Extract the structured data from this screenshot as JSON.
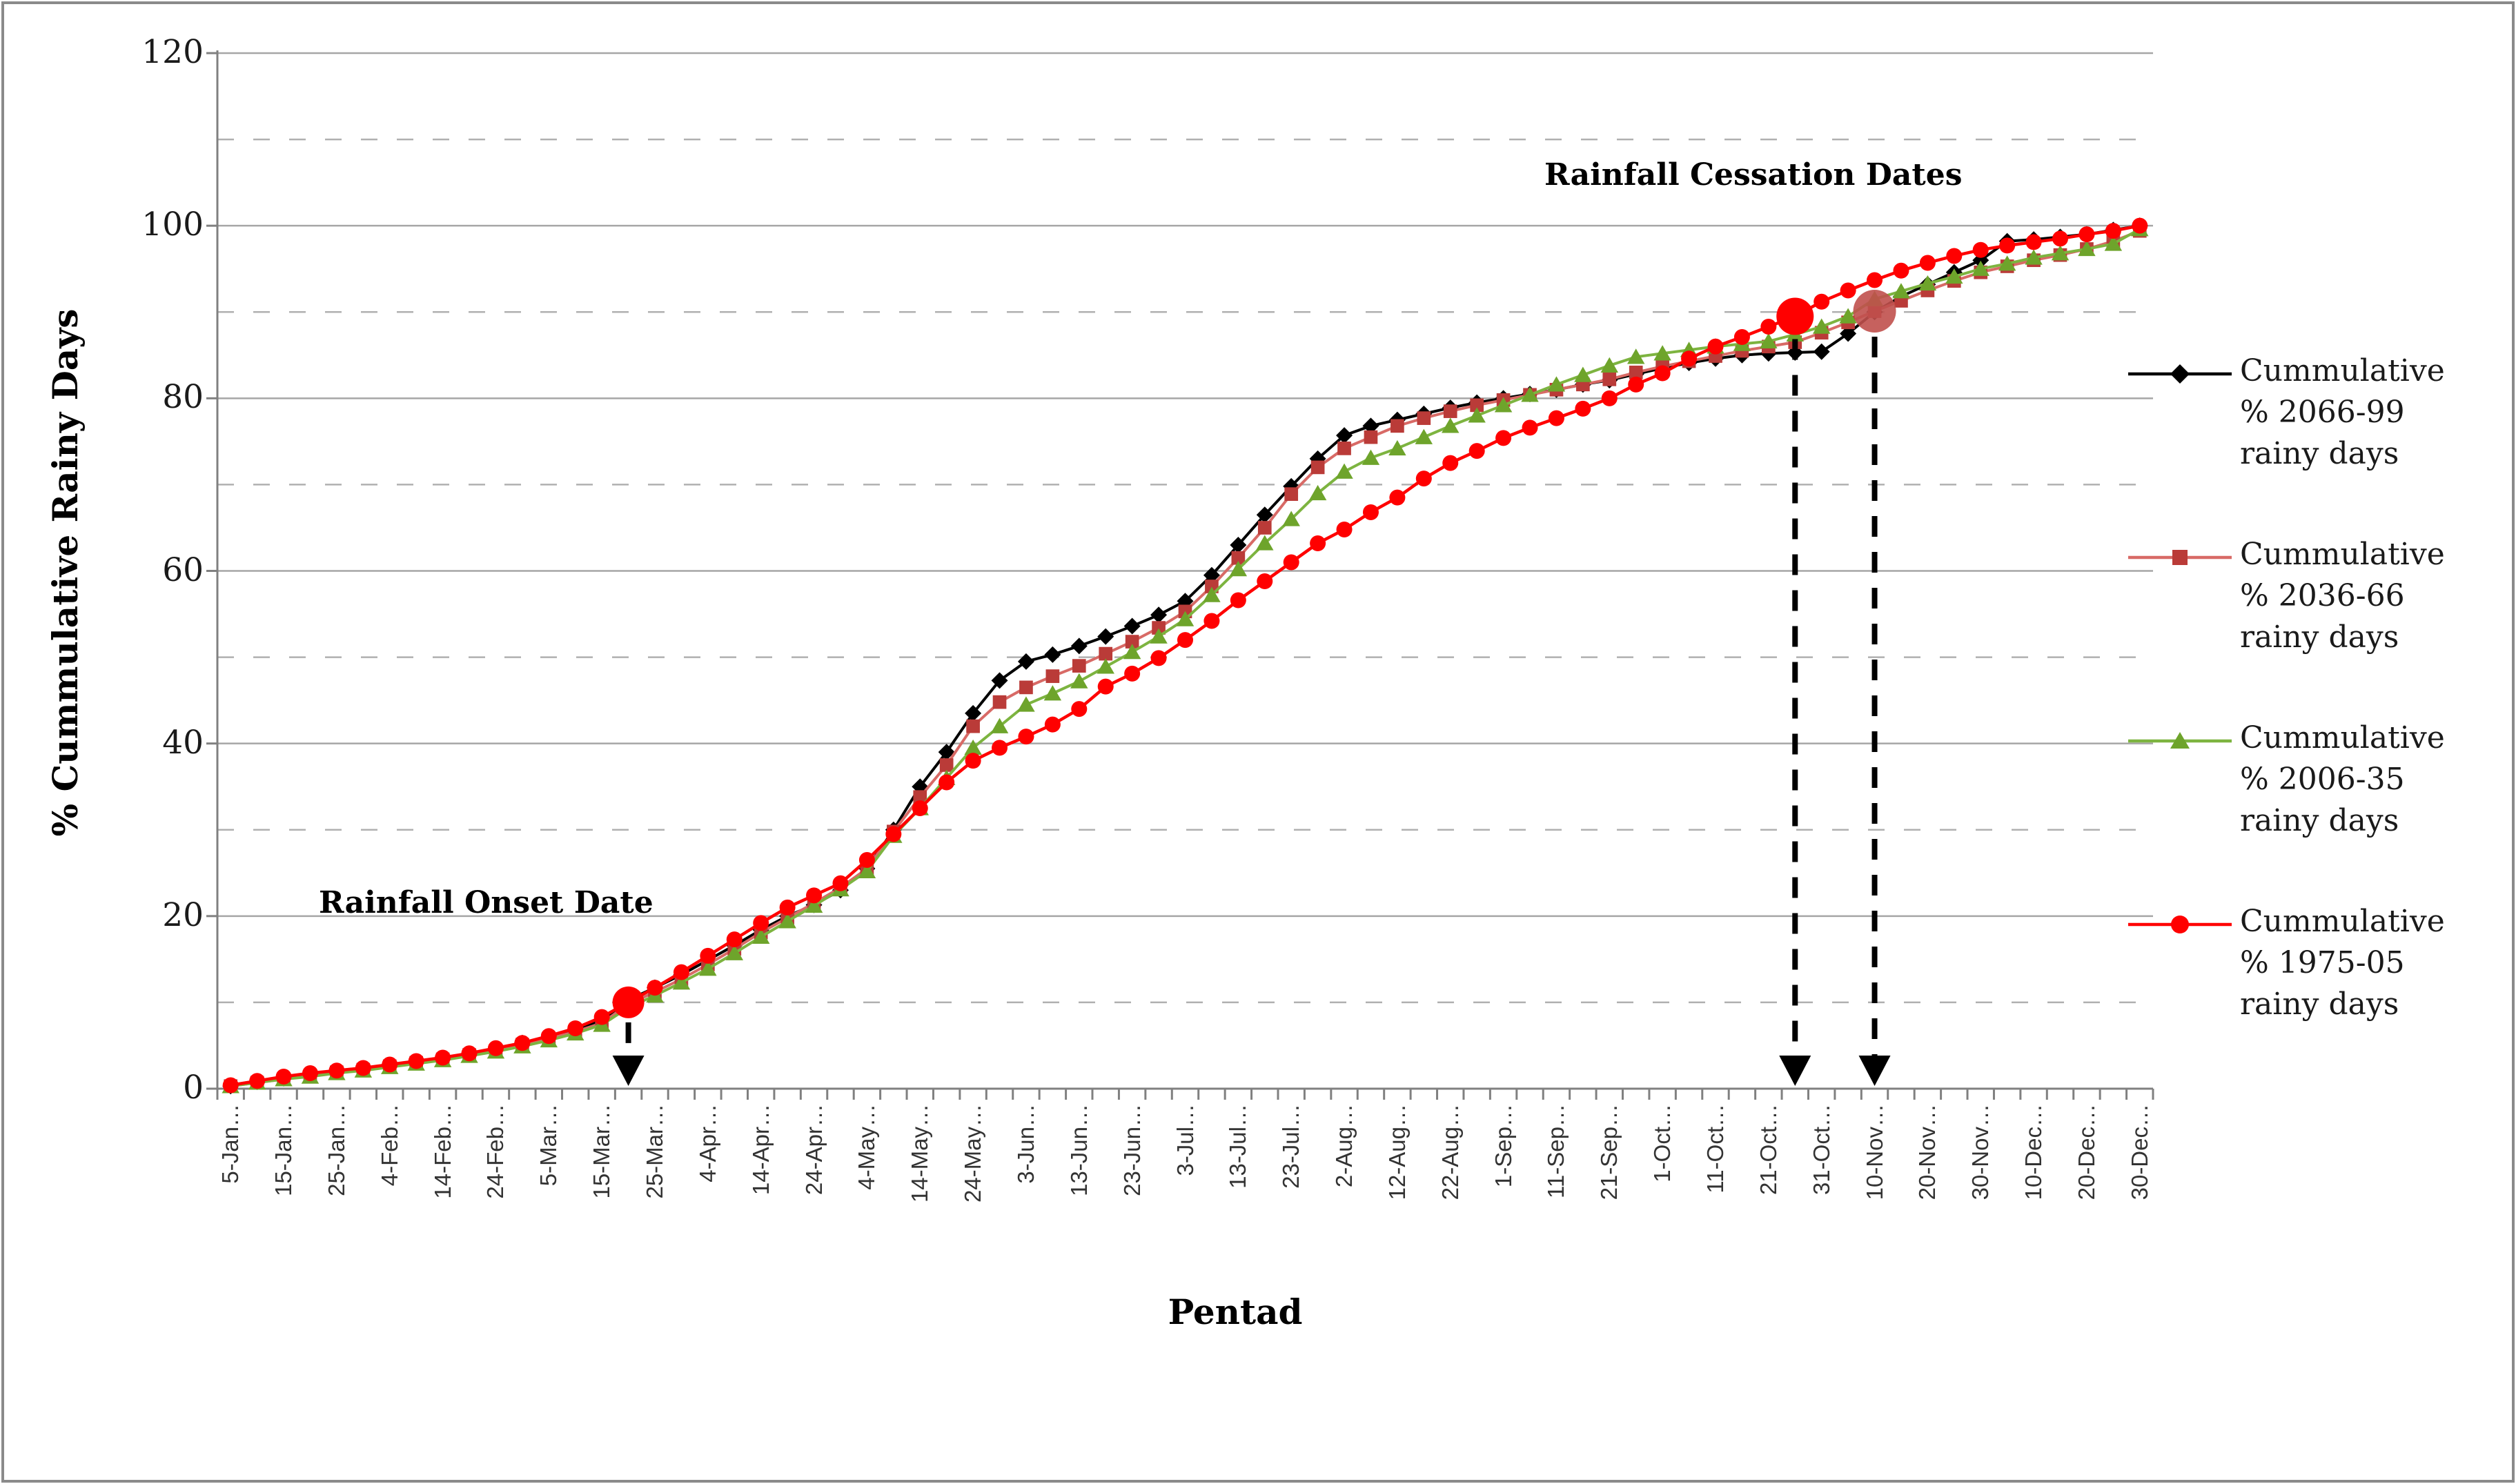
{
  "figure": {
    "background": "#ffffff",
    "frame_color": "#8a8a8a"
  },
  "chart_data": {
    "type": "line",
    "title": "",
    "xlabel": "Pentad",
    "ylabel": "% Cummulative Rainy Days",
    "ylim": [
      0,
      120
    ],
    "ytick_interval": 20,
    "y_tick_labels": [
      "0",
      "20",
      "40",
      "60",
      "80",
      "100",
      "120"
    ],
    "grid": {
      "solid_values": [
        20,
        40,
        60,
        80,
        100,
        120
      ],
      "dashed_values": [
        10,
        30,
        50,
        70,
        90,
        110
      ],
      "solid_color": "#a6a6a6",
      "dashed_color": "#b0b0b0",
      "axis_color": "#808080"
    },
    "x_tick_labels": [
      "5-Jan…",
      "15-Jan…",
      "25-Jan…",
      "4-Feb…",
      "14-Feb…",
      "24-Feb…",
      "5-Mar…",
      "15-Mar…",
      "25-Mar…",
      "4-Apr…",
      "14-Apr…",
      "24-Apr…",
      "4-May…",
      "14-May…",
      "24-May…",
      "3-Jun…",
      "13-Jun…",
      "23-Jun…",
      "3-Jul…",
      "13-Jul…",
      "23-Jul…",
      "2-Aug…",
      "12-Aug…",
      "22-Aug…",
      "1-Sep…",
      "11-Sep…",
      "21-Sep…",
      "1-Oct…",
      "11-Oct…",
      "21-Oct…",
      "31-Oct…",
      "10-Nov…",
      "20-Nov…",
      "30-Nov…",
      "10-Dec…",
      "20-Dec…",
      "30-Dec…"
    ],
    "points_per_label_interval": 2,
    "legend_position": "right",
    "series": [
      {
        "name": "Cummulative % 2066-99 rainy days",
        "legend_lines": [
          "Cummulative",
          "% 2066-99",
          "rainy days"
        ],
        "marker": "diamond",
        "line_color": "#000000",
        "marker_color": "#000000",
        "values": [
          0.3,
          0.8,
          1.2,
          1.6,
          2.0,
          2.3,
          2.7,
          3.1,
          3.5,
          4.0,
          4.6,
          5.3,
          6.0,
          6.9,
          7.9,
          10.3,
          11.7,
          13.2,
          14.9,
          16.6,
          18.4,
          20.0,
          21.3,
          23.0,
          25.5,
          30.0,
          35.0,
          39.0,
          43.5,
          47.3,
          49.5,
          50.3,
          51.3,
          52.4,
          53.6,
          54.9,
          56.5,
          59.5,
          63.0,
          66.5,
          69.8,
          73.0,
          75.7,
          76.8,
          77.5,
          78.2,
          78.9,
          79.5,
          80.0,
          80.5,
          81.0,
          81.6,
          82.1,
          82.8,
          83.5,
          84.1,
          84.6,
          85.0,
          85.2,
          85.3,
          85.4,
          87.5,
          90.0,
          91.8,
          93.2,
          94.6,
          96.0,
          98.2,
          98.4,
          98.7,
          99.0,
          99.5,
          100.0
        ]
      },
      {
        "name": "Cummulative % 2036-66 rainy days",
        "legend_lines": [
          "Cummulative",
          "% 2036-66",
          "rainy days"
        ],
        "marker": "square",
        "line_color": "#d86a66",
        "marker_color": "#ba3b38",
        "values": [
          0.3,
          0.7,
          1.1,
          1.5,
          1.9,
          2.2,
          2.6,
          3.0,
          3.4,
          3.9,
          4.4,
          5.1,
          5.8,
          6.6,
          7.6,
          9.8,
          11.2,
          12.7,
          14.4,
          16.2,
          18.1,
          19.8,
          21.5,
          23.3,
          25.5,
          29.8,
          33.8,
          37.5,
          42.0,
          44.8,
          46.5,
          47.8,
          49.0,
          50.4,
          51.8,
          53.4,
          55.3,
          58.2,
          61.5,
          65.0,
          68.9,
          72.0,
          74.2,
          75.5,
          76.8,
          77.7,
          78.5,
          79.2,
          79.8,
          80.4,
          81.0,
          81.6,
          82.2,
          83.0,
          83.7,
          84.3,
          84.9,
          85.5,
          86.0,
          86.5,
          87.6,
          88.8,
          90.1,
          91.3,
          92.5,
          93.6,
          94.6,
          95.3,
          96.0,
          96.6,
          97.3,
          98.2,
          99.4
        ]
      },
      {
        "name": "Cummulative % 2006-35 rainy days",
        "legend_lines": [
          "Cummulative",
          "% 2006-35",
          "rainy days"
        ],
        "marker": "triangle",
        "line_color": "#7db440",
        "marker_color": "#6ea42b",
        "values": [
          0.3,
          0.7,
          1.1,
          1.4,
          1.8,
          2.1,
          2.5,
          2.9,
          3.3,
          3.8,
          4.3,
          4.9,
          5.6,
          6.4,
          7.4,
          9.4,
          10.8,
          12.3,
          13.9,
          15.7,
          17.6,
          19.4,
          21.2,
          23.1,
          25.2,
          29.3,
          32.5,
          36.0,
          39.5,
          42.0,
          44.5,
          45.8,
          47.2,
          48.9,
          50.6,
          52.4,
          54.4,
          57.2,
          60.2,
          63.2,
          66.0,
          69.0,
          71.5,
          73.1,
          74.2,
          75.5,
          76.8,
          78.0,
          79.2,
          80.4,
          81.6,
          82.7,
          83.8,
          84.8,
          85.2,
          85.6,
          86.0,
          86.3,
          86.6,
          87.4,
          88.3,
          89.5,
          91.5,
          92.4,
          93.3,
          94.1,
          95.0,
          95.6,
          96.3,
          96.8,
          97.3,
          97.9,
          99.6
        ]
      },
      {
        "name": "Cummulative % 1975-05 rainy days",
        "legend_lines": [
          "Cummulative",
          "% 1975-05",
          "rainy days"
        ],
        "marker": "circle",
        "line_color": "#ff0000",
        "marker_color": "#ff0000",
        "values": [
          0.4,
          0.9,
          1.4,
          1.8,
          2.1,
          2.4,
          2.8,
          3.2,
          3.6,
          4.1,
          4.7,
          5.3,
          6.1,
          7.0,
          8.3,
          10.0,
          11.7,
          13.5,
          15.4,
          17.3,
          19.2,
          21.0,
          22.4,
          23.8,
          26.5,
          29.5,
          32.5,
          35.5,
          38.0,
          39.5,
          40.8,
          42.2,
          44.0,
          46.6,
          48.1,
          49.9,
          52.0,
          54.2,
          56.6,
          58.8,
          61.0,
          63.2,
          64.8,
          66.8,
          68.5,
          70.7,
          72.5,
          73.9,
          75.4,
          76.6,
          77.7,
          78.8,
          80.0,
          81.6,
          82.9,
          84.6,
          86.0,
          87.1,
          88.3,
          89.5,
          91.2,
          92.5,
          93.7,
          94.8,
          95.7,
          96.5,
          97.2,
          97.7,
          98.1,
          98.5,
          99.0,
          99.4,
          100.0
        ]
      }
    ],
    "annotations": {
      "onset": {
        "label": "Rainfall Onset Date",
        "series_index": 3,
        "point_index": 15,
        "value": 10.0,
        "dot_color": "#ff0000",
        "dot_radius": 23
      },
      "cessation": {
        "label": "Rainfall Cessation Dates",
        "dots": [
          {
            "series_index": 3,
            "point_index": 59,
            "value": 89.5,
            "dot_color": "#ff0000",
            "dot_radius": 27,
            "opacity": 1
          },
          {
            "series_index": 1,
            "point_index": 62,
            "value": 90.1,
            "dot_color": "#c0504d",
            "dot_radius": 31,
            "opacity": 0.9
          }
        ]
      }
    }
  }
}
